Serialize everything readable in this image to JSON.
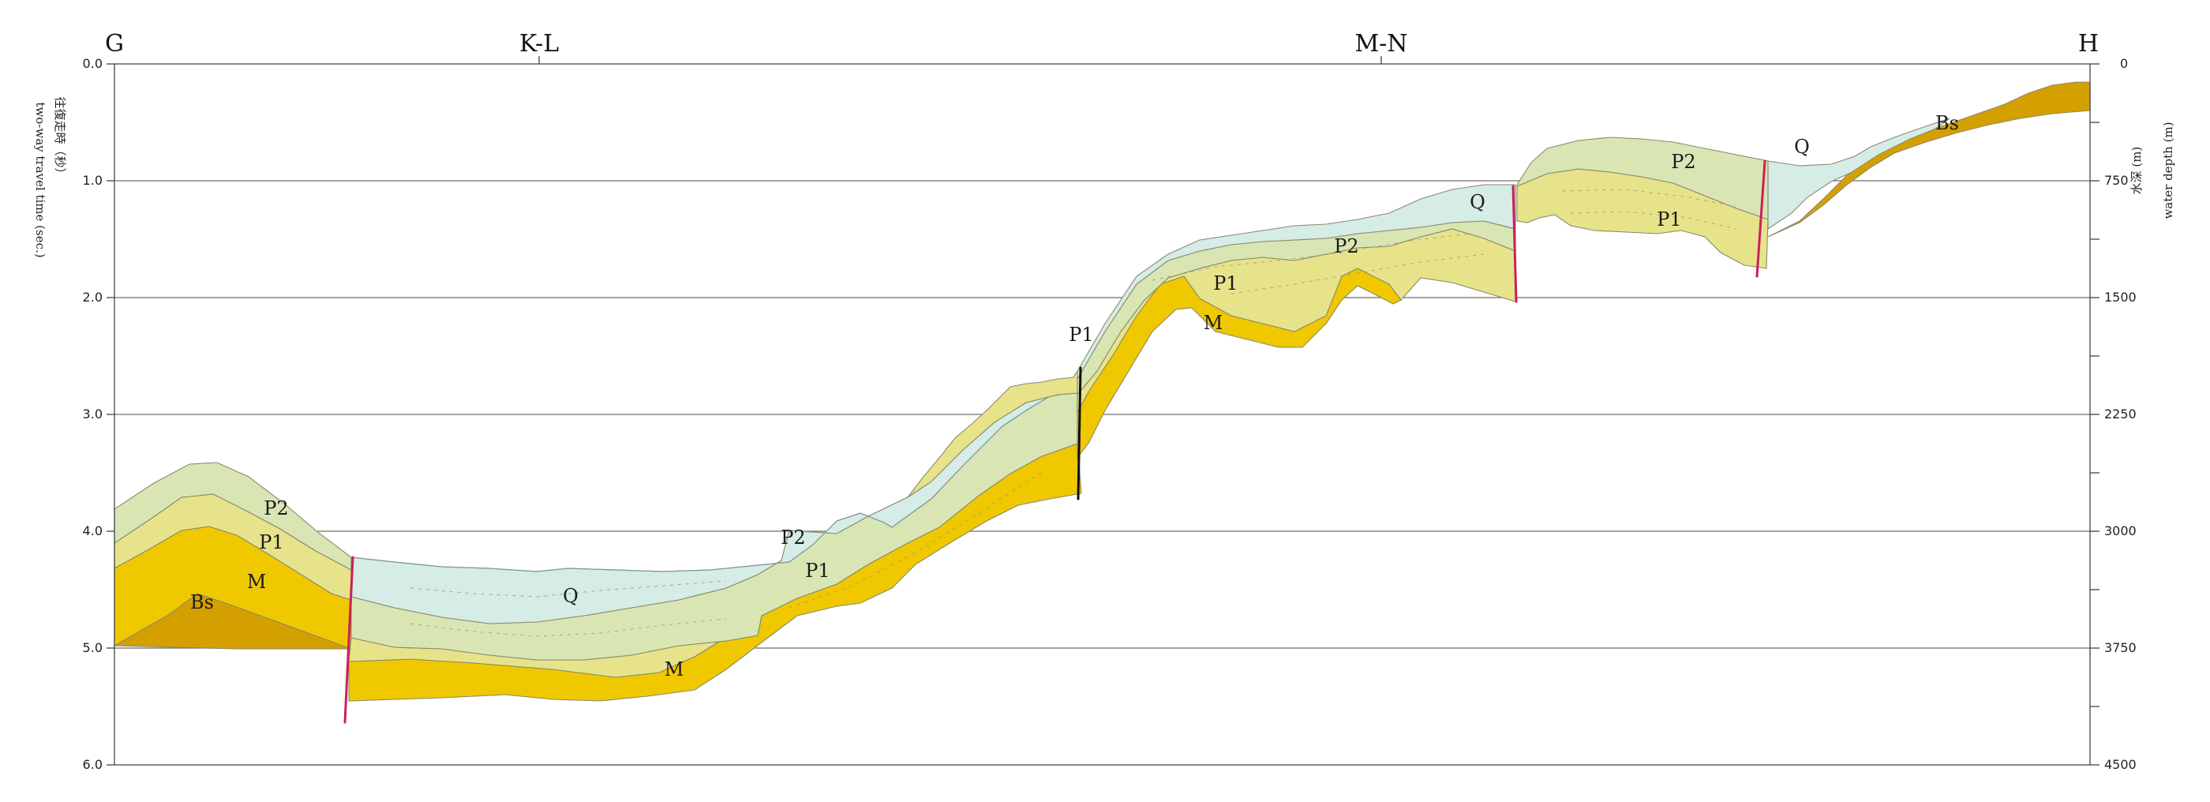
{
  "stations": [
    {
      "name": "G",
      "id": "g"
    },
    {
      "name": "K-L",
      "id": "k-l"
    },
    {
      "name": "M-N",
      "id": "m-n"
    },
    {
      "name": "H",
      "id": "h"
    }
  ],
  "left_axis": {
    "label_jp": "往復走時（秒）",
    "label_en": "two-way travel time (sec.)",
    "ticks": [
      "0.0",
      "1.0",
      "2.0",
      "3.0",
      "4.0",
      "5.0",
      "6.0"
    ]
  },
  "right_axis": {
    "label_jp": "水深 (m)",
    "label_en": "water depth (m)",
    "ticks": [
      "0",
      "750",
      "1500",
      "2250",
      "3000",
      "3750",
      "4500"
    ]
  },
  "layer_labels": [
    {
      "text": "P2",
      "id": "p2-left"
    },
    {
      "text": "P1",
      "id": "p1-left"
    },
    {
      "text": "M",
      "id": "m-left"
    },
    {
      "text": "Bs",
      "id": "bs-left"
    },
    {
      "text": "Q",
      "id": "q-basin"
    },
    {
      "text": "M",
      "id": "m-basin"
    },
    {
      "text": "P2",
      "id": "p2-slope"
    },
    {
      "text": "P1",
      "id": "p1-slope"
    },
    {
      "text": "P1",
      "id": "p1-fault"
    },
    {
      "text": "P1",
      "id": "p1-terrace"
    },
    {
      "text": "M",
      "id": "m-terrace"
    },
    {
      "text": "P2",
      "id": "p2-terrace"
    },
    {
      "text": "Q",
      "id": "q-terrace"
    },
    {
      "text": "P2",
      "id": "p2-high"
    },
    {
      "text": "P1",
      "id": "p1-high"
    },
    {
      "text": "Q",
      "id": "q-high"
    },
    {
      "text": "Bs",
      "id": "bs-right"
    }
  ],
  "colors": {
    "Q": "#d6ece6",
    "P2": "#d9e6b4",
    "P1": "#e7e38b",
    "M": "#f0c800",
    "Bs": "#d4a000",
    "fault_red": "#cc1f5a",
    "fault_black": "#111111"
  }
}
